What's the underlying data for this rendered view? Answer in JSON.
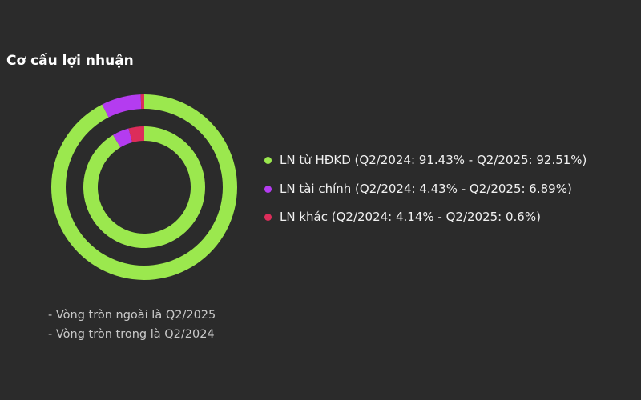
{
  "chart_data": {
    "type": "pie",
    "title": "Cơ cấu lợi nhuận",
    "categories": [
      "LN từ HĐKD",
      "LN tài chính",
      "LN khác"
    ],
    "colors": [
      "#9be84e",
      "#b43cf0",
      "#dc2d5a"
    ],
    "series": [
      {
        "name": "Q2/2025",
        "values": [
          92.51,
          6.89,
          0.6
        ]
      },
      {
        "name": "Q2/2024",
        "values": [
          91.43,
          4.43,
          4.14
        ]
      }
    ],
    "legend_position": "right",
    "legend": [
      "LN từ HĐKD (Q2/2024: 91.43% - Q2/2025: 92.51%)",
      "LN tài chính (Q2/2024: 4.43% - Q2/2025: 6.89%)",
      "LN khác (Q2/2024: 4.14% - Q2/2025: 0.6%)"
    ],
    "notes": [
      "- Vòng tròn ngoài là Q2/2025",
      "- Vòng tròn trong là Q2/2024"
    ]
  }
}
